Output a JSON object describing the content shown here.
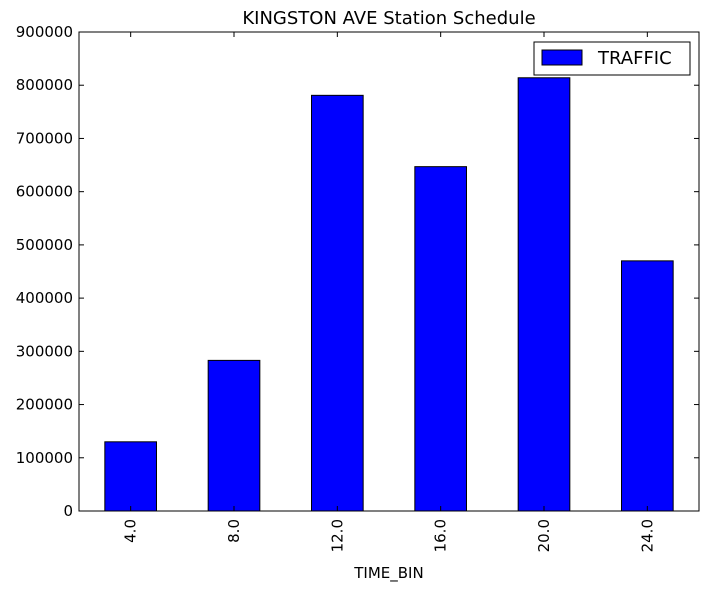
{
  "chart_data": {
    "type": "bar",
    "title": "KINGSTON AVE Station Schedule",
    "xlabel": "TIME_BIN",
    "ylabel": "",
    "categories": [
      "4.0",
      "8.0",
      "12.0",
      "16.0",
      "20.0",
      "24.0"
    ],
    "series": [
      {
        "name": "TRAFFIC",
        "color": "#0000ff",
        "values": [
          130000,
          283000,
          781000,
          647000,
          814000,
          470000
        ]
      }
    ],
    "ylim": [
      0,
      900000
    ],
    "yticks": [
      "0",
      "100000",
      "200000",
      "300000",
      "400000",
      "500000",
      "600000",
      "700000",
      "800000",
      "900000"
    ],
    "grid": false,
    "legend": "top-right"
  }
}
